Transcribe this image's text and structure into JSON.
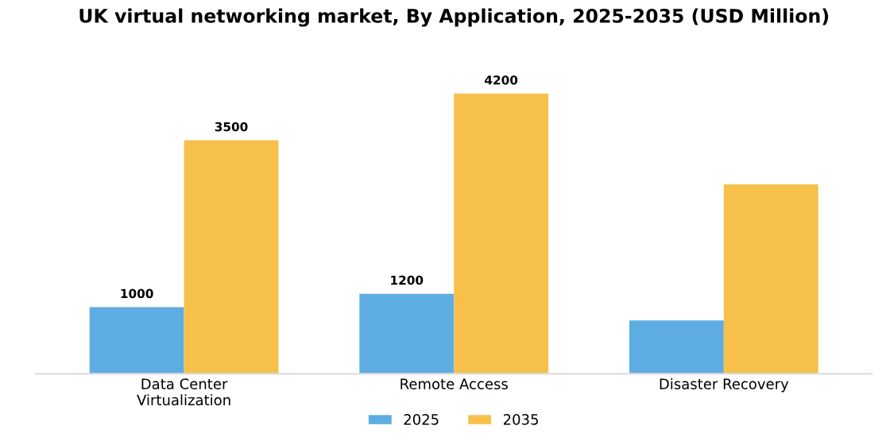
{
  "chart_data": {
    "type": "bar",
    "title": "UK virtual networking market, By Application, 2025-2035 (USD Million)",
    "categories": [
      "Data Center\nVirtualization",
      "Remote Access",
      "Disaster Recovery"
    ],
    "series": [
      {
        "name": "2025",
        "color": "#5dade2",
        "values": [
          1000,
          1200,
          800
        ],
        "value_labels": [
          "1000",
          "1200",
          null
        ]
      },
      {
        "name": "2035",
        "color": "#f7c04a",
        "values": [
          3500,
          4200,
          2840
        ],
        "value_labels": [
          "3500",
          "4200",
          null
        ]
      }
    ],
    "legend": "bottom",
    "grid": false,
    "tick_labels": "x"
  }
}
